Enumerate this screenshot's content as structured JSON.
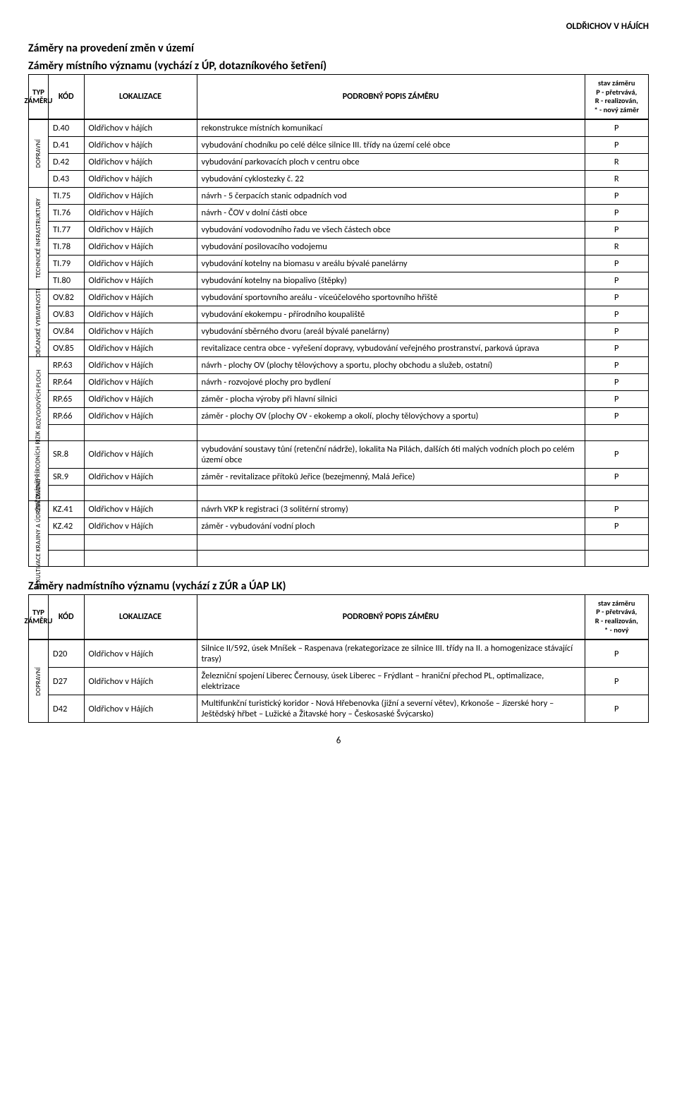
{
  "municipality": "OLDŘICHOV V HÁJÍCH",
  "section1_title1": "Záměry na provedení změn v území",
  "section1_title2": "Záměry místního významu (vychází z ÚP, dotazníkového šetření)",
  "section2_title": "Záměry nadmístního významu (vychází z ZÚR a ÚAP LK)",
  "page_number": "6",
  "headers": {
    "typ": "TYP ZÁMĚRU",
    "kod": "KÓD",
    "lokalizace": "LOKALIZACE",
    "popis": "PODROBNÝ POPIS ZÁMĚRU",
    "stav1": "stav záměru\nP - přetrvává,\nR - realizován,\n* - nový záměr",
    "stav2": "stav záměru\nP - přetrvává,\nR - realizován,\n* - nový"
  },
  "groups1": [
    {
      "label": "DOPRAVNÍ",
      "rows": [
        {
          "kod": "D.40",
          "loc": "Oldřichov v hájích",
          "popis": "rekonstrukce místních komunikací",
          "stat": "P"
        },
        {
          "kod": "D.41",
          "loc": "Oldřichov v hájích",
          "popis": "vybudování chodníku po celé délce silnice III. třídy na území celé obce",
          "stat": "P"
        },
        {
          "kod": "D.42",
          "loc": "Oldřichov v hájích",
          "popis": "vybudování parkovacích ploch v centru obce",
          "stat": "R"
        },
        {
          "kod": "D.43",
          "loc": "Oldřichov v hájích",
          "popis": "vybudování cyklostezky č. 22",
          "stat": "R"
        }
      ]
    },
    {
      "label": "TECHNICKÉ INFRASTRUKTURY",
      "rows": [
        {
          "kod": "TI.75",
          "loc": "Oldřichov v Hájích",
          "popis": "návrh - 5 čerpacích stanic odpadních vod",
          "stat": "P"
        },
        {
          "kod": "TI.76",
          "loc": "Oldřichov v Hájích",
          "popis": "návrh - ČOV v dolní části obce",
          "stat": "P"
        },
        {
          "kod": "TI.77",
          "loc": "Oldřichov v Hájích",
          "popis": "vybudování vodovodního řadu ve všech částech obce",
          "stat": "P"
        },
        {
          "kod": "TI.78",
          "loc": "Oldřichov v Hájích",
          "popis": "vybudování posilovacího vodojemu",
          "stat": "R"
        },
        {
          "kod": "TI.79",
          "loc": "Oldřichov v Hájích",
          "popis": "vybudování kotelny na biomasu v areálu bývalé panelárny",
          "stat": "P"
        },
        {
          "kod": "TI.80",
          "loc": "Oldřichov v Hájích",
          "popis": "vybudování kotelny na biopalivo (štěpky)",
          "stat": "P"
        }
      ]
    },
    {
      "label": "OBČANSKÉ VYBAVENOSTI",
      "rows": [
        {
          "kod": "OV.82",
          "loc": "Oldřichov v Hájích",
          "popis": "vybudování sportovního areálu - víceúčelového sportovního hřiště",
          "stat": "P"
        },
        {
          "kod": "OV.83",
          "loc": "Oldřichov v Hájích",
          "popis": "vybudování ekokempu - přírodního koupaliště",
          "stat": "P"
        },
        {
          "kod": "OV.84",
          "loc": "Oldřichov v Hájích",
          "popis": "vybudování sběrného dvoru (areál bývalé panelárny)",
          "stat": "P"
        },
        {
          "kod": "OV.85",
          "loc": "Oldřichov v Hájích",
          "popis": "revitalizace centra obce - vyřešení dopravy, vybudování veřejného prostranství, parková úprava",
          "stat": "P"
        }
      ]
    },
    {
      "label": "ROZVOJOVÝCH PLOCH",
      "rows": [
        {
          "kod": "RP.63",
          "loc": "Oldřichov v Hájích",
          "popis": "návrh - plochy OV (plochy tělovýchovy a sportu, plochy obchodu a služeb, ostatní)",
          "stat": "P"
        },
        {
          "kod": "RP.64",
          "loc": "Oldřichov v Hájích",
          "popis": "návrh - rozvojové plochy pro bydlení",
          "stat": "P"
        },
        {
          "kod": "RP.65",
          "loc": "Oldřichov v Hájích",
          "popis": "záměr - plocha výroby při hlavní silnici",
          "stat": "P"
        },
        {
          "kod": "RP.66",
          "loc": "Oldřichov v Hájích",
          "popis": "záměr - plochy OV (plochy OV - ekokemp a okolí, plochy tělovýchovy a sportu)",
          "stat": "P"
        }
      ],
      "trailing_blank": true
    },
    {
      "label": "SNIŽOVÁNÍ PŘÍRODNÍCH RIZIK",
      "rows": [
        {
          "kod": "SR.8",
          "loc": "Oldřichov v Hájích",
          "popis": "vybudování soustavy tůní (retenční nádrže), lokalita Na Pilách, dalších 6ti malých vodních ploch po celém území obce",
          "stat": "P"
        },
        {
          "kod": "SR.9",
          "loc": "Oldřichov v Hájích",
          "popis": "záměr - revitalizace přítoků Jeřice (bezejmenný, Malá Jeřice)",
          "stat": "P"
        }
      ],
      "trailing_blank": true
    },
    {
      "label": "REKULTIVACE KRAJINY A ÚDRŽBY ZELENĚ",
      "rows": [
        {
          "kod": "KZ.41",
          "loc": "Oldřichov v Hájích",
          "popis": "návrh VKP k registraci (3 solitérní stromy)",
          "stat": "P"
        },
        {
          "kod": "KZ.42",
          "loc": "Oldřichov v Hájích",
          "popis": "záměr - vybudování vodní ploch",
          "stat": "P"
        }
      ],
      "trailing_blank": 2
    }
  ],
  "groups2": [
    {
      "label": "DOPRAVNÍ",
      "rows": [
        {
          "kod": "D20",
          "loc": "Oldřichov v Hájích",
          "popis": "Silnice II/592, úsek Mníšek – Raspenava (rekategorizace ze silnice III. třídy na II. a homogenizace stávající trasy)",
          "stat": "P"
        },
        {
          "kod": "D27",
          "loc": "Oldřichov v Hájích",
          "popis": "Železniční spojení Liberec Černousy, úsek Liberec – Frýdlant – hraniční přechod PL, optimalizace, elektrizace",
          "stat": "P"
        },
        {
          "kod": "D42",
          "loc": "Oldřichov v Hájích",
          "popis": "Multifunkční turistický koridor - Nová Hřebenovka (jižní a severní větev), Krkonoše – Jizerské hory – Ještědský hřbet – Lužické a Žitavské hory – Českosaské Švýcarsko)",
          "stat": "P"
        }
      ]
    }
  ]
}
